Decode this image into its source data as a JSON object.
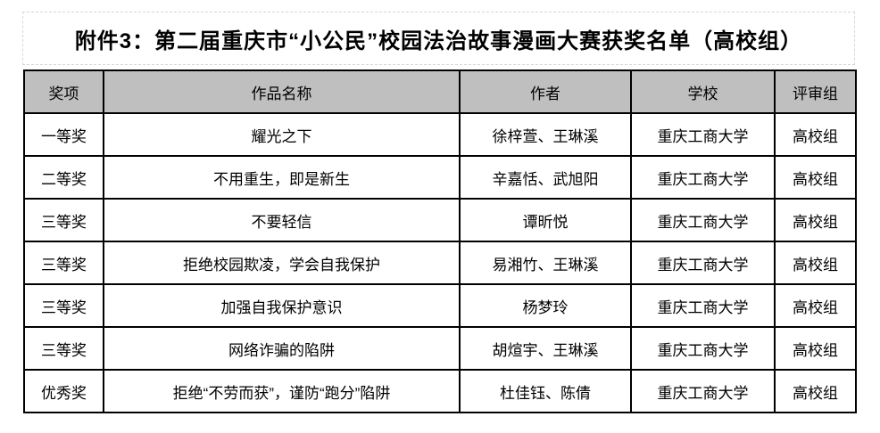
{
  "page": {
    "title": "附件3：第二届重庆市“小公民”校园法治故事漫画大赛获奖名单（高校组）"
  },
  "table": {
    "columns": [
      "奖项",
      "作品名称",
      "作者",
      "学校",
      "评审组"
    ],
    "rows": [
      [
        "一等奖",
        "耀光之下",
        "徐梓萱、王琳溪",
        "重庆工商大学",
        "高校组"
      ],
      [
        "二等奖",
        "不用重生，即是新生",
        "辛嘉恬、武旭阳",
        "重庆工商大学",
        "高校组"
      ],
      [
        "三等奖",
        "不要轻信",
        "谭昕悦",
        "重庆工商大学",
        "高校组"
      ],
      [
        "三等奖",
        "拒绝校园欺凌，学会自我保护",
        "易湘竹、王琳溪",
        "重庆工商大学",
        "高校组"
      ],
      [
        "三等奖",
        "加强自我保护意识",
        "杨梦玲",
        "重庆工商大学",
        "高校组"
      ],
      [
        "三等奖",
        "网络诈骗的陷阱",
        "胡煊宇、王琳溪",
        "重庆工商大学",
        "高校组"
      ],
      [
        "优秀奖",
        "拒绝“不劳而获”，谨防“跑分”陷阱",
        "杜佳钰、陈倩",
        "重庆工商大学",
        "高校组"
      ]
    ]
  },
  "colors": {
    "background": "#ffffff",
    "header_bg": "#bfbfbf",
    "grid_border": "#000000",
    "title_gridline": "#d6d6d6",
    "text": "#000000"
  }
}
